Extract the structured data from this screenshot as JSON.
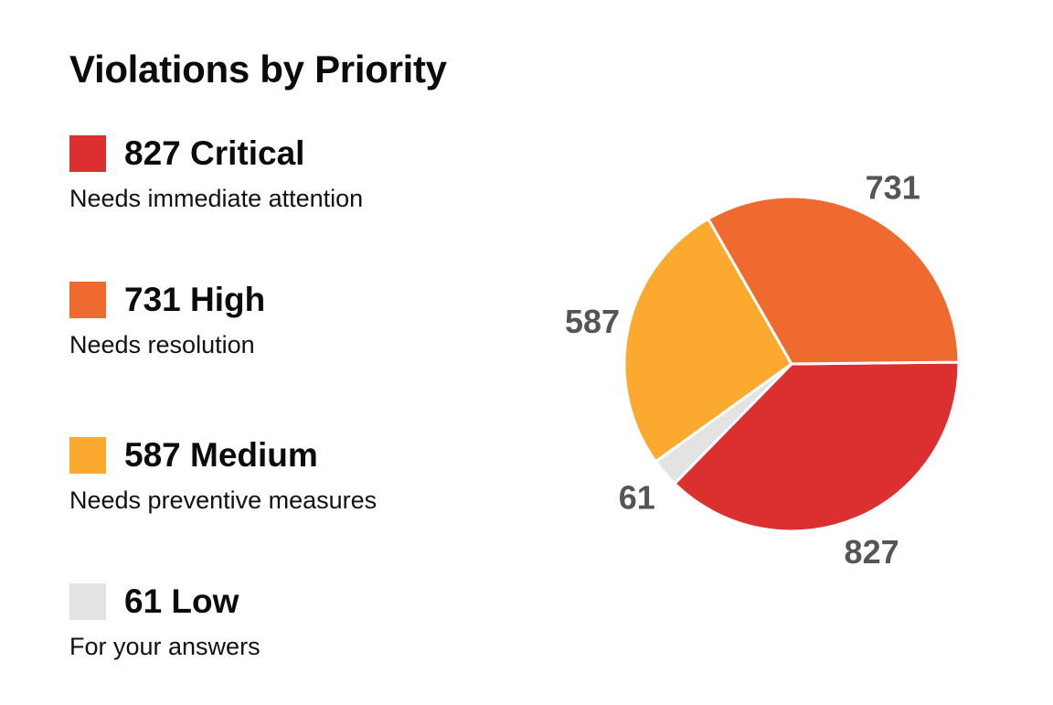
{
  "chart_data": {
    "type": "pie",
    "title": "Violations by Priority",
    "slices": [
      {
        "key": "critical",
        "value": 827,
        "label": "827 Critical",
        "data_label": "827",
        "description": "Needs immediate attention",
        "color": "#dc2f2f"
      },
      {
        "key": "high",
        "value": 731,
        "label": "731 High",
        "data_label": "731",
        "description": "Needs resolution",
        "color": "#ee6a2f"
      },
      {
        "key": "medium",
        "value": 587,
        "label": "587 Medium",
        "data_label": "587",
        "description": "Needs preventive measures",
        "color": "#fcaa2f"
      },
      {
        "key": "low",
        "value": 61,
        "label": "61 Low",
        "data_label": "61",
        "description": "For your answers",
        "color": "#e3e3e3"
      }
    ],
    "legend": "left"
  }
}
